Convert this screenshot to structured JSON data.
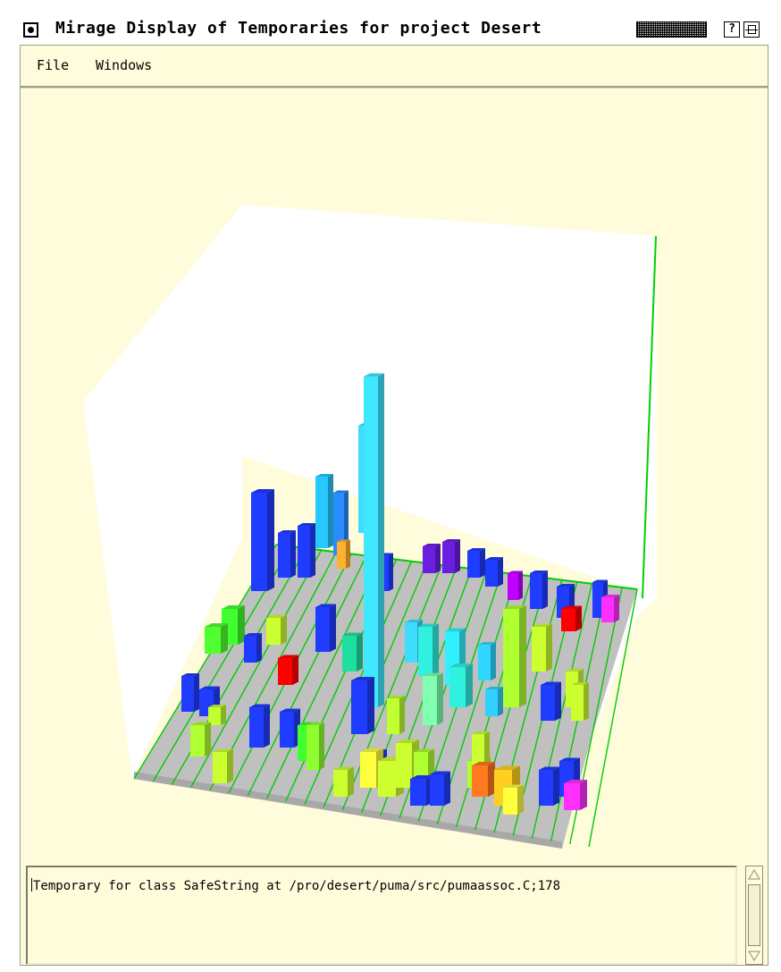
{
  "window": {
    "title": "Mirage Display of Temporaries for project Desert",
    "help_label": "?"
  },
  "menubar": {
    "items": [
      {
        "label": "File"
      },
      {
        "label": "Windows"
      }
    ]
  },
  "message": {
    "text": "Temporary for class SafeString at /pro/desert/puma/src/pumaassoc.C;178"
  },
  "colors": {
    "background": "#fffcdc",
    "floor": "#c0c0c0",
    "grid": "#00e000",
    "wall": "#ffffff"
  },
  "icons": [
    "window-menu-icon",
    "title-pattern-icon",
    "help-icon",
    "maximize-icon",
    "scroll-up-icon",
    "scroll-down-icon"
  ]
}
